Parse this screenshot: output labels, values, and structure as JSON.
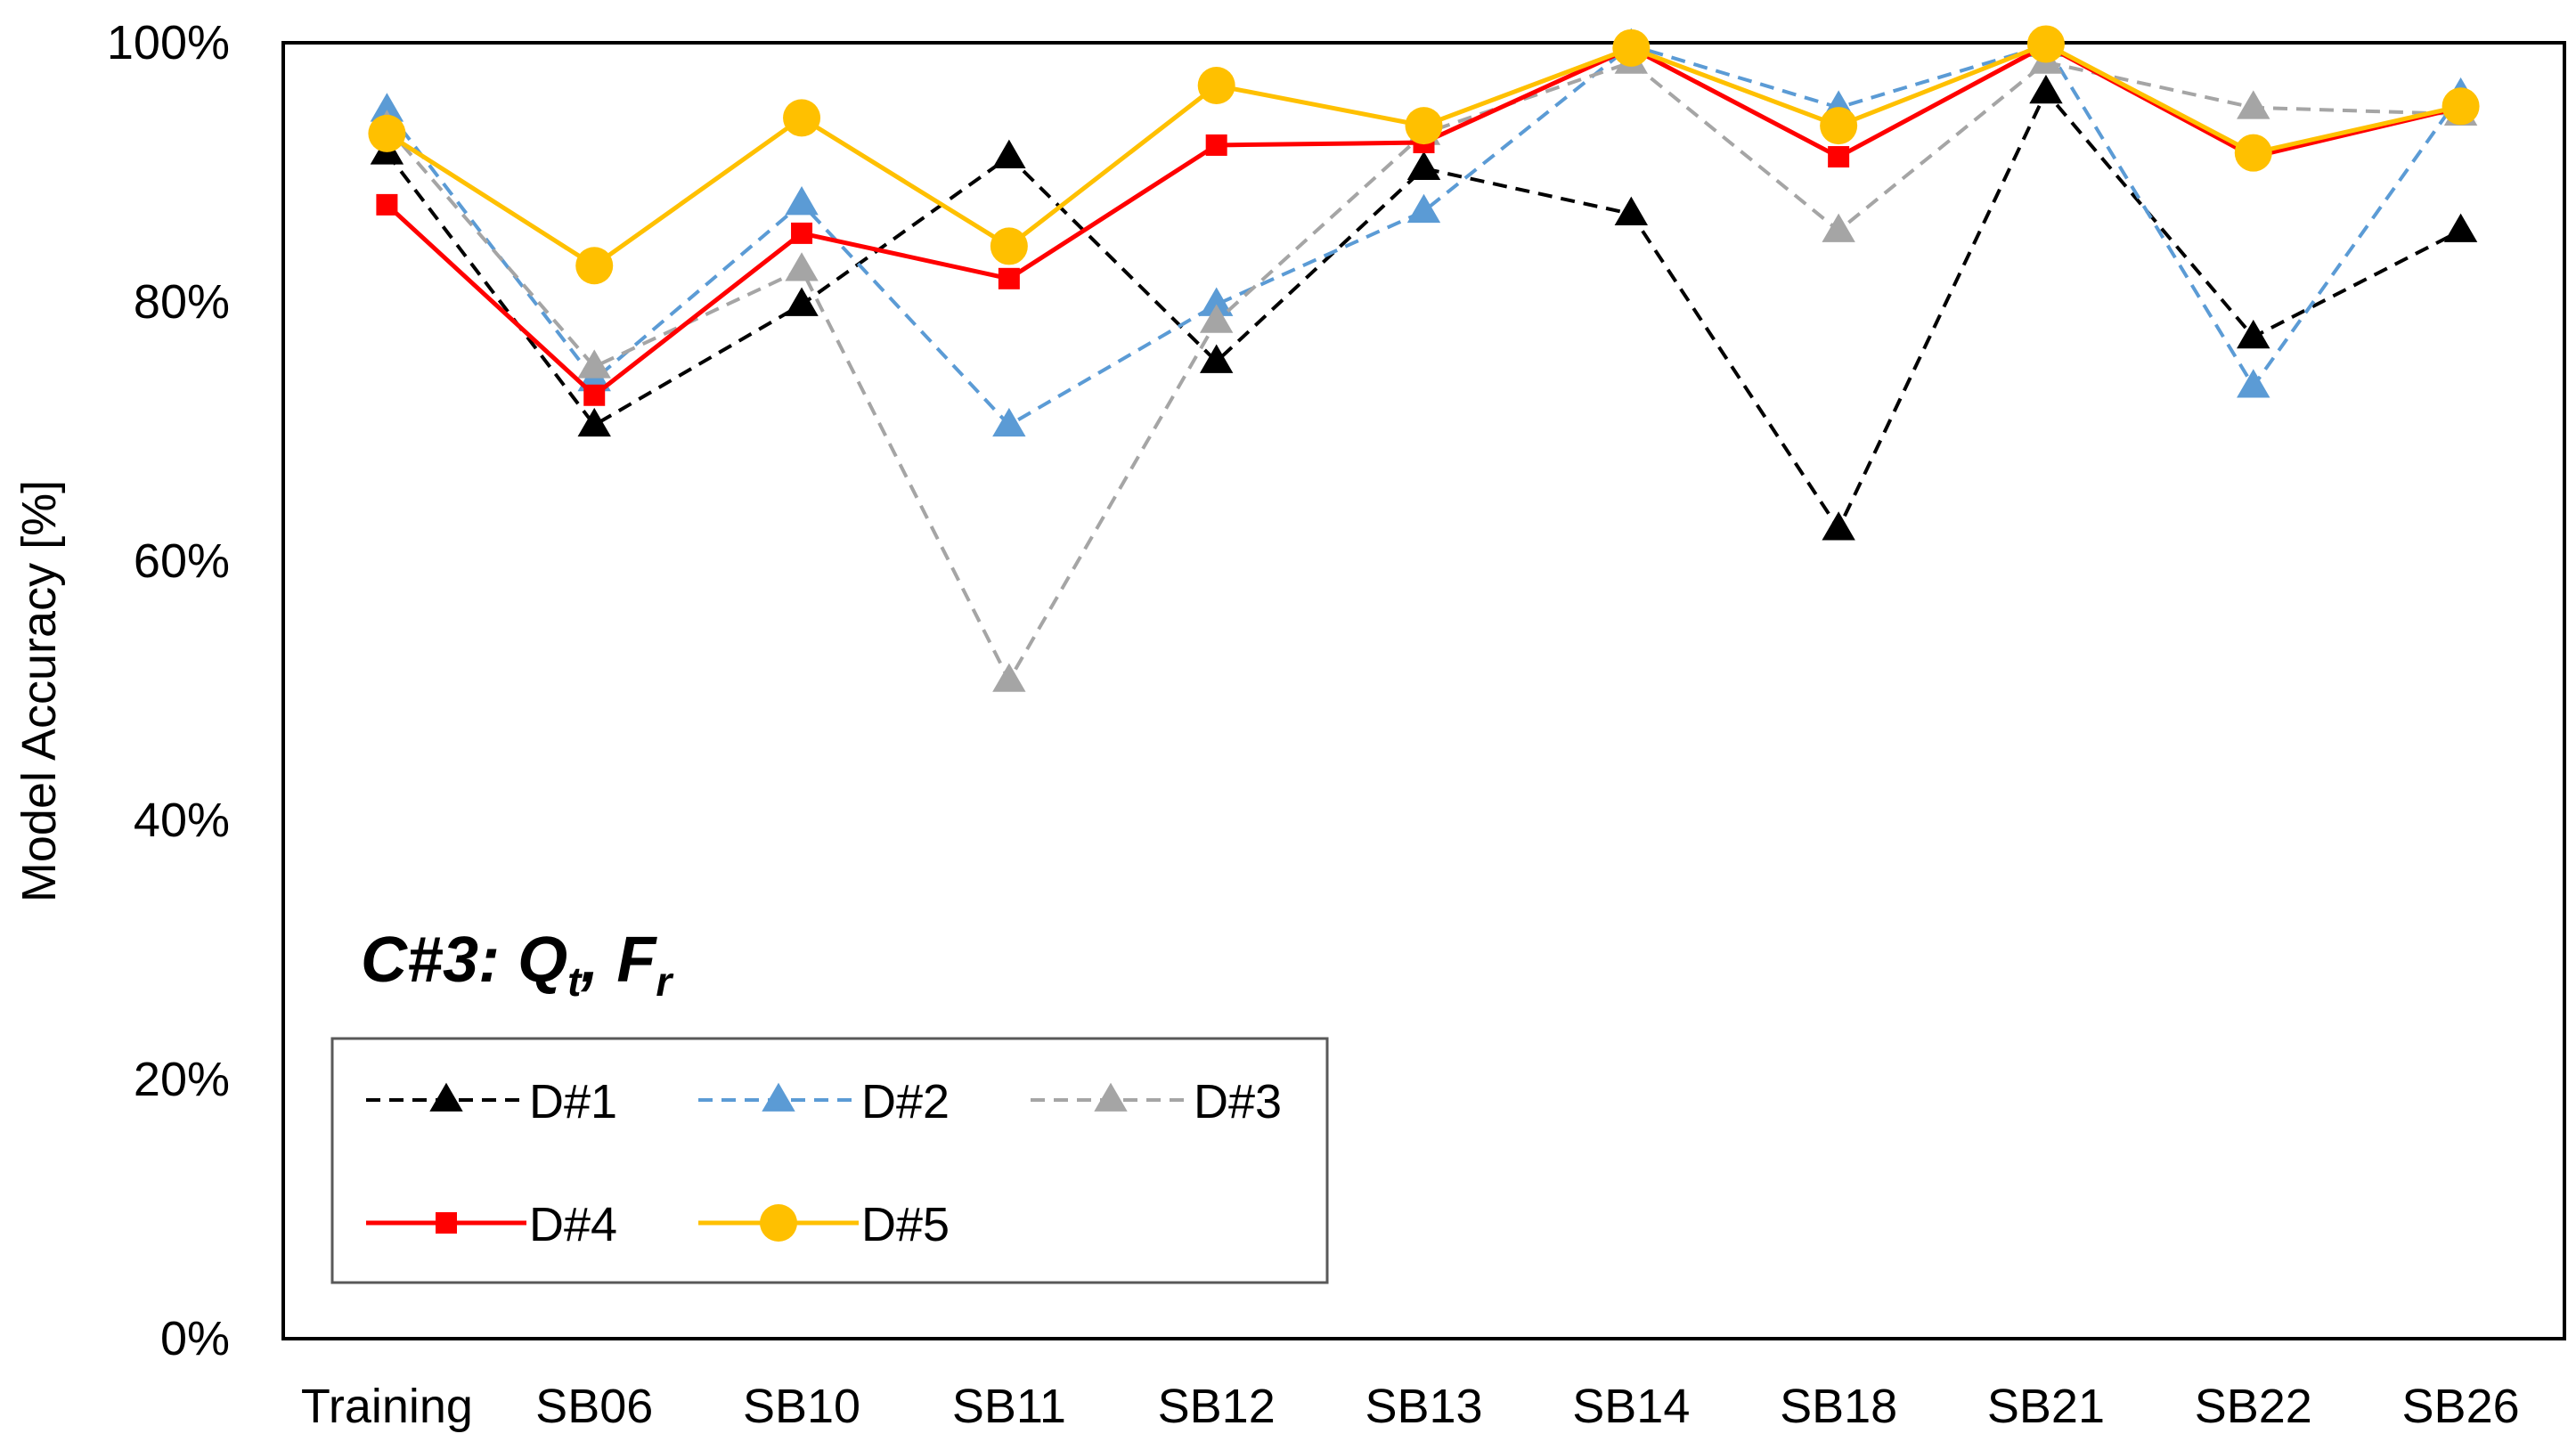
{
  "chart_data": {
    "type": "line",
    "title": "",
    "xlabel": "",
    "ylabel": "Model Accuracy [%]",
    "ylim": [
      0,
      100
    ],
    "yticks": [
      0,
      20,
      40,
      60,
      80,
      100
    ],
    "ytick_labels": [
      "0%",
      "20%",
      "40%",
      "60%",
      "80%",
      "100%"
    ],
    "grid": false,
    "legend_position": "bottom-left",
    "categories": [
      "Training",
      "SB06",
      "SB10",
      "SB11",
      "SB12",
      "SB13",
      "SB14",
      "SB18",
      "SB21",
      "SB22",
      "SB26"
    ],
    "annotation": {
      "prefix": "C#3: ",
      "q_main": "Q",
      "q_sub": "t",
      "sep": ", ",
      "f_main": "F",
      "f_sub": "r"
    },
    "series": [
      {
        "name": "D#1",
        "color": "#000000",
        "dash": "dashed",
        "marker": "triangle",
        "values": [
          91.5,
          70.5,
          79.8,
          91.2,
          75.4,
          90.3,
          86.8,
          62.5,
          96.2,
          77.3,
          85.5
        ]
      },
      {
        "name": "D#2",
        "color": "#5B9BD5",
        "dash": "dashed",
        "marker": "triangle",
        "values": [
          94.8,
          74.0,
          87.6,
          70.5,
          79.8,
          87.0,
          99.8,
          95.0,
          99.8,
          73.5,
          96.0
        ]
      },
      {
        "name": "D#3",
        "color": "#A5A5A5",
        "dash": "dashed",
        "marker": "triangle",
        "values": [
          93.5,
          75.0,
          82.5,
          50.8,
          78.5,
          93.0,
          98.5,
          85.5,
          98.5,
          95.0,
          94.5
        ]
      },
      {
        "name": "D#4",
        "color": "#FF0000",
        "dash": "solid",
        "marker": "square",
        "values": [
          87.5,
          72.8,
          85.3,
          81.8,
          92.1,
          92.3,
          99.6,
          91.2,
          99.8,
          91.2,
          95.0
        ]
      },
      {
        "name": "D#5",
        "color": "#FFC000",
        "dash": "solid",
        "marker": "circle",
        "values": [
          93.0,
          82.8,
          94.2,
          84.3,
          96.7,
          93.6,
          99.6,
          93.6,
          99.9,
          91.5,
          95.1
        ]
      }
    ]
  }
}
